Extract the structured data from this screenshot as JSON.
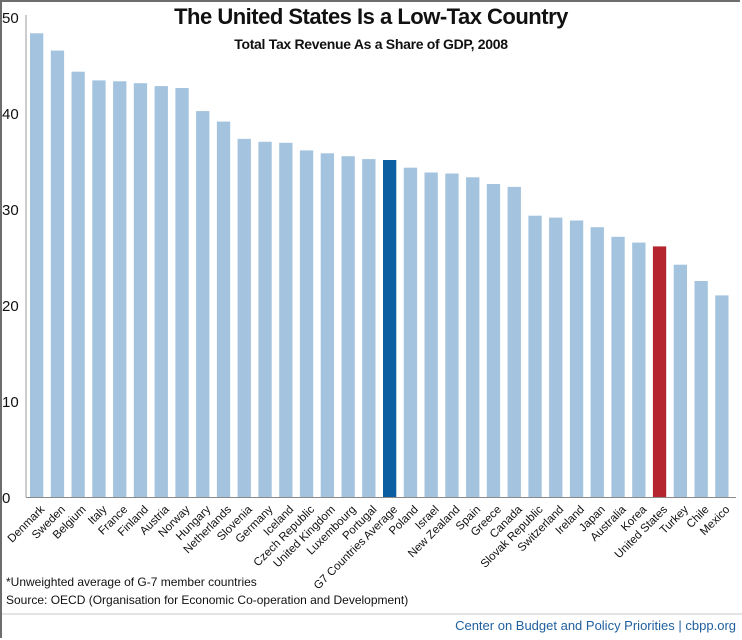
{
  "chart_data": {
    "type": "bar",
    "title": "The United States Is a Low-Tax Country",
    "subtitle": "Total Tax Revenue As a Share of GDP, 2008",
    "xlabel": "",
    "ylabel": "",
    "ylim": [
      0,
      50
    ],
    "yticks": [
      0,
      10,
      20,
      30,
      40,
      50
    ],
    "grid": false,
    "legend": "none",
    "categories": [
      "Denmark",
      "Sweden",
      "Belgium",
      "Italy",
      "France",
      "Finland",
      "Austria",
      "Norway",
      "Hungary",
      "Netherlands",
      "Slovenia",
      "Germany",
      "Iceland",
      "Czech Republic",
      "United Kingdom",
      "Luxembourg",
      "Portugal",
      "G7 Countries Average",
      "Poland",
      "Israel",
      "New Zealand",
      "Spain",
      "Greece",
      "Canada",
      "Slovak Republic",
      "Switzerland",
      "Ireland",
      "Japan",
      "Australia",
      "Korea",
      "United States",
      "Turkey",
      "Chile",
      "Mexico"
    ],
    "values": [
      48.3,
      46.5,
      44.3,
      43.4,
      43.3,
      43.1,
      42.8,
      42.6,
      40.2,
      39.1,
      37.3,
      37.0,
      36.9,
      36.1,
      35.8,
      35.5,
      35.2,
      35.1,
      34.3,
      33.8,
      33.7,
      33.3,
      32.6,
      32.3,
      29.3,
      29.1,
      28.8,
      28.1,
      27.1,
      26.5,
      26.1,
      24.2,
      22.5,
      21.0
    ],
    "colors": {
      "default": "#a3c3de",
      "highlight_average": "#0b5ea1",
      "highlight_us": "#b5252d"
    },
    "highlights": {
      "G7 Countries Average": "highlight_average",
      "United States": "highlight_us"
    }
  },
  "footnotes": {
    "note": "*Unweighted average of G-7 member countries",
    "source": "Source: OECD (Organisation for Economic Co-operation and Development)"
  },
  "credit": {
    "org": "Center on Budget and Policy Priorities",
    "separator": "|",
    "site": "cbpp.org"
  }
}
